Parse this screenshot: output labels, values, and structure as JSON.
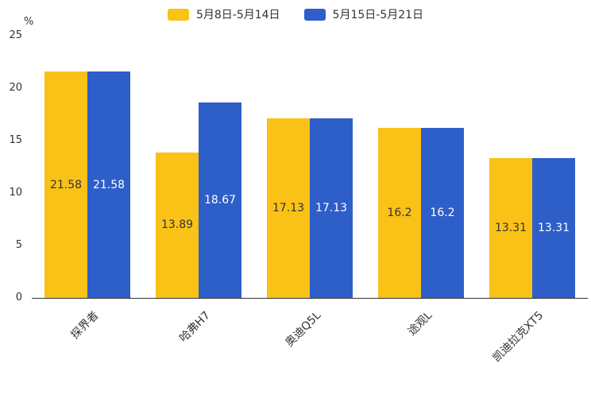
{
  "chart_data": {
    "type": "bar",
    "title": "",
    "categories": [
      "探界者",
      "哈弗H7",
      "奥迪Q5L",
      "途观L",
      "凯迪拉克XT5"
    ],
    "series": [
      {
        "name": "5月8日-5月14日",
        "color": "#FAC117",
        "label_color": "#333333",
        "values": [
          21.58,
          13.89,
          17.13,
          16.2,
          13.31
        ]
      },
      {
        "name": "5月15日-5月21日",
        "color": "#2E5EC8",
        "label_color": "#FFFFFF",
        "values": [
          21.58,
          18.67,
          17.13,
          16.2,
          13.31
        ]
      }
    ],
    "xlabel": "",
    "ylabel": "%",
    "yticks": [
      0,
      5,
      10,
      15,
      20,
      25
    ],
    "ylim": [
      0,
      25
    ],
    "grid": false,
    "legend_position": "top",
    "value_labels": "inside-center",
    "category_label_rotation": -45
  }
}
